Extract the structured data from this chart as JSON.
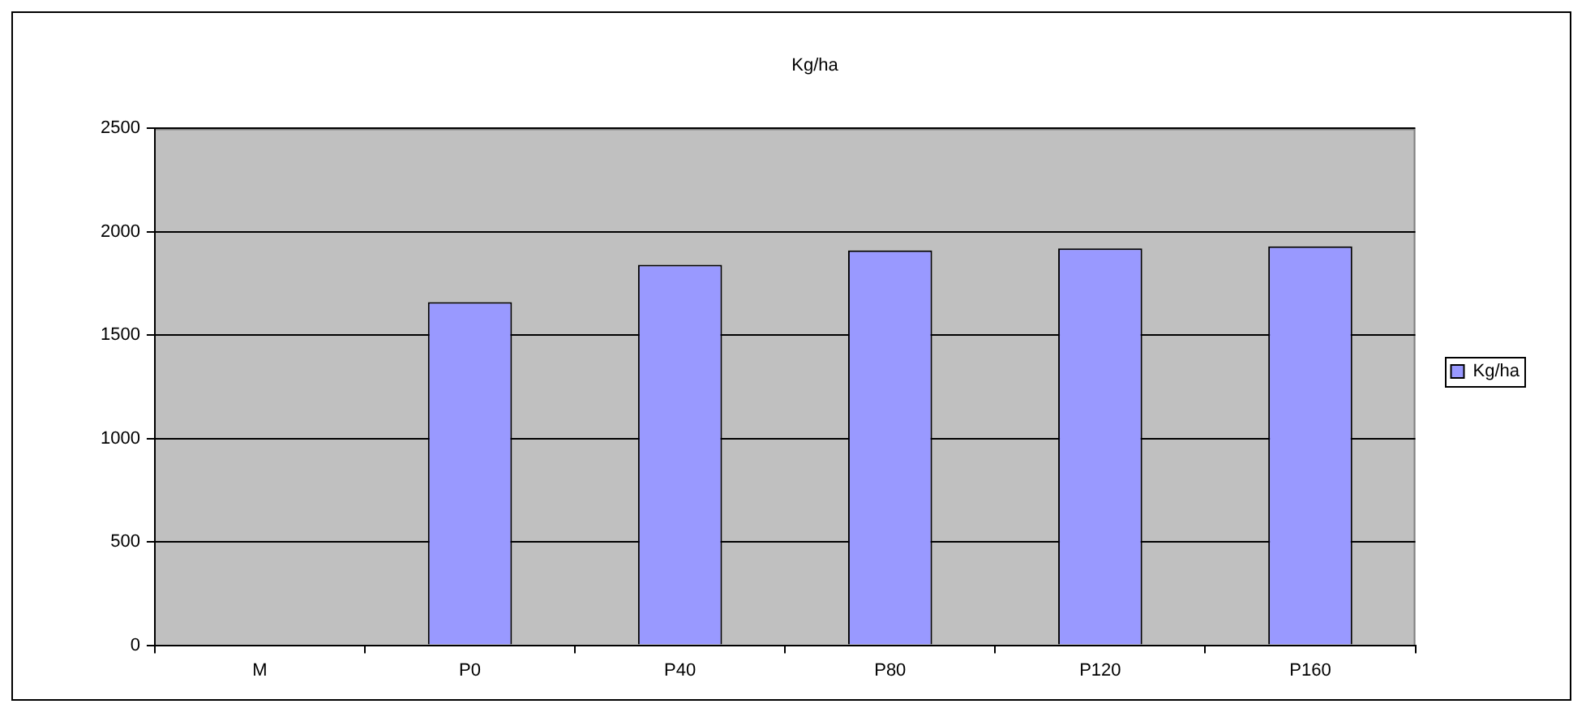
{
  "chart_data": {
    "type": "bar",
    "title": "Kg/ha",
    "categories": [
      "M",
      "P0",
      "P40",
      "P80",
      "P120",
      "P160"
    ],
    "series": [
      {
        "name": "Kg/ha",
        "color": "#9999ff",
        "values": [
          null,
          1660,
          1840,
          1910,
          1920,
          1930
        ]
      }
    ],
    "ylim": [
      0,
      2500
    ],
    "yticks": [
      0,
      500,
      1000,
      1500,
      2000,
      2500
    ],
    "grid": "y",
    "legend": "right"
  }
}
